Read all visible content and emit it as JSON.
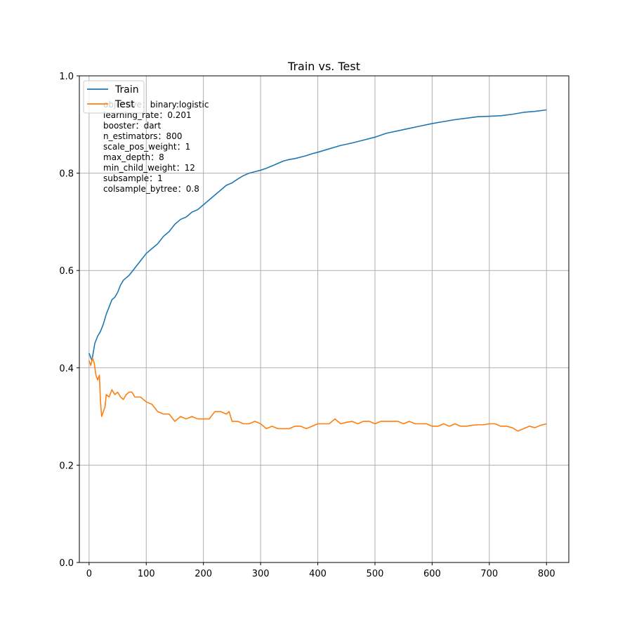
{
  "chart_data": {
    "type": "line",
    "title": "Train vs. Test",
    "xlabel": "",
    "ylabel": "",
    "xlim": [
      -17,
      839
    ],
    "ylim": [
      0.0,
      1.0
    ],
    "xticks": [
      0,
      100,
      200,
      300,
      400,
      500,
      600,
      700,
      800
    ],
    "xtick_labels": [
      "0",
      "100",
      "200",
      "300",
      "400",
      "500",
      "600",
      "700",
      "800"
    ],
    "yticks": [
      0.0,
      0.2,
      0.4,
      0.6,
      0.8,
      1.0
    ],
    "ytick_labels": [
      "0.0",
      "0.2",
      "0.4",
      "0.6",
      "0.8",
      "1.0"
    ],
    "grid": true,
    "legend_position": "top-left",
    "series": [
      {
        "name": "Train",
        "color": "#1f77b4",
        "points": [
          [
            0,
            0.43
          ],
          [
            5,
            0.415
          ],
          [
            10,
            0.45
          ],
          [
            15,
            0.465
          ],
          [
            20,
            0.475
          ],
          [
            25,
            0.49
          ],
          [
            30,
            0.51
          ],
          [
            35,
            0.525
          ],
          [
            40,
            0.54
          ],
          [
            45,
            0.545
          ],
          [
            50,
            0.555
          ],
          [
            55,
            0.57
          ],
          [
            60,
            0.58
          ],
          [
            70,
            0.59
          ],
          [
            80,
            0.605
          ],
          [
            90,
            0.62
          ],
          [
            100,
            0.635
          ],
          [
            110,
            0.645
          ],
          [
            120,
            0.655
          ],
          [
            130,
            0.67
          ],
          [
            140,
            0.68
          ],
          [
            150,
            0.695
          ],
          [
            160,
            0.705
          ],
          [
            170,
            0.71
          ],
          [
            180,
            0.72
          ],
          [
            190,
            0.725
          ],
          [
            200,
            0.735
          ],
          [
            210,
            0.745
          ],
          [
            220,
            0.755
          ],
          [
            230,
            0.765
          ],
          [
            240,
            0.775
          ],
          [
            250,
            0.78
          ],
          [
            260,
            0.788
          ],
          [
            270,
            0.795
          ],
          [
            280,
            0.8
          ],
          [
            290,
            0.803
          ],
          [
            300,
            0.806
          ],
          [
            310,
            0.81
          ],
          [
            320,
            0.815
          ],
          [
            330,
            0.82
          ],
          [
            340,
            0.825
          ],
          [
            350,
            0.828
          ],
          [
            360,
            0.83
          ],
          [
            370,
            0.833
          ],
          [
            380,
            0.836
          ],
          [
            390,
            0.84
          ],
          [
            400,
            0.843
          ],
          [
            420,
            0.85
          ],
          [
            440,
            0.857
          ],
          [
            460,
            0.862
          ],
          [
            480,
            0.868
          ],
          [
            500,
            0.874
          ],
          [
            520,
            0.882
          ],
          [
            540,
            0.887
          ],
          [
            560,
            0.892
          ],
          [
            580,
            0.897
          ],
          [
            600,
            0.902
          ],
          [
            620,
            0.906
          ],
          [
            640,
            0.91
          ],
          [
            660,
            0.913
          ],
          [
            680,
            0.916
          ],
          [
            700,
            0.917
          ],
          [
            720,
            0.918
          ],
          [
            740,
            0.921
          ],
          [
            760,
            0.925
          ],
          [
            780,
            0.927
          ],
          [
            800,
            0.93
          ]
        ]
      },
      {
        "name": "Test",
        "color": "#ff7f0e",
        "points": [
          [
            0,
            0.415
          ],
          [
            3,
            0.405
          ],
          [
            6,
            0.42
          ],
          [
            9,
            0.41
          ],
          [
            12,
            0.385
          ],
          [
            15,
            0.375
          ],
          [
            18,
            0.385
          ],
          [
            20,
            0.33
          ],
          [
            22,
            0.3
          ],
          [
            25,
            0.31
          ],
          [
            28,
            0.32
          ],
          [
            30,
            0.345
          ],
          [
            35,
            0.34
          ],
          [
            40,
            0.355
          ],
          [
            45,
            0.345
          ],
          [
            50,
            0.35
          ],
          [
            55,
            0.34
          ],
          [
            60,
            0.335
          ],
          [
            65,
            0.345
          ],
          [
            70,
            0.35
          ],
          [
            75,
            0.35
          ],
          [
            80,
            0.34
          ],
          [
            90,
            0.34
          ],
          [
            100,
            0.33
          ],
          [
            110,
            0.325
          ],
          [
            120,
            0.31
          ],
          [
            130,
            0.305
          ],
          [
            140,
            0.305
          ],
          [
            150,
            0.29
          ],
          [
            160,
            0.3
          ],
          [
            170,
            0.295
          ],
          [
            180,
            0.3
          ],
          [
            190,
            0.295
          ],
          [
            200,
            0.295
          ],
          [
            210,
            0.295
          ],
          [
            220,
            0.31
          ],
          [
            230,
            0.31
          ],
          [
            240,
            0.305
          ],
          [
            245,
            0.31
          ],
          [
            250,
            0.29
          ],
          [
            260,
            0.29
          ],
          [
            270,
            0.285
          ],
          [
            280,
            0.285
          ],
          [
            290,
            0.29
          ],
          [
            300,
            0.285
          ],
          [
            310,
            0.275
          ],
          [
            320,
            0.28
          ],
          [
            330,
            0.275
          ],
          [
            340,
            0.275
          ],
          [
            350,
            0.275
          ],
          [
            360,
            0.28
          ],
          [
            370,
            0.28
          ],
          [
            380,
            0.275
          ],
          [
            390,
            0.28
          ],
          [
            400,
            0.285
          ],
          [
            410,
            0.285
          ],
          [
            420,
            0.285
          ],
          [
            430,
            0.295
          ],
          [
            440,
            0.285
          ],
          [
            450,
            0.288
          ],
          [
            460,
            0.29
          ],
          [
            470,
            0.285
          ],
          [
            480,
            0.29
          ],
          [
            490,
            0.29
          ],
          [
            500,
            0.285
          ],
          [
            510,
            0.29
          ],
          [
            520,
            0.29
          ],
          [
            530,
            0.29
          ],
          [
            540,
            0.29
          ],
          [
            550,
            0.285
          ],
          [
            560,
            0.29
          ],
          [
            570,
            0.285
          ],
          [
            580,
            0.285
          ],
          [
            590,
            0.285
          ],
          [
            600,
            0.28
          ],
          [
            610,
            0.28
          ],
          [
            620,
            0.285
          ],
          [
            630,
            0.28
          ],
          [
            640,
            0.285
          ],
          [
            650,
            0.28
          ],
          [
            660,
            0.28
          ],
          [
            670,
            0.282
          ],
          [
            680,
            0.283
          ],
          [
            690,
            0.283
          ],
          [
            700,
            0.285
          ],
          [
            710,
            0.285
          ],
          [
            720,
            0.28
          ],
          [
            730,
            0.28
          ],
          [
            740,
            0.277
          ],
          [
            750,
            0.27
          ],
          [
            760,
            0.275
          ],
          [
            770,
            0.28
          ],
          [
            780,
            0.277
          ],
          [
            790,
            0.282
          ],
          [
            800,
            0.285
          ]
        ]
      }
    ],
    "annotations": [
      "objective：binary:logistic",
      "learning_rate：0.201",
      "booster：dart",
      "n_estimators：800",
      "scale_pos_weight：1",
      "max_depth：8",
      "min_child_weight：12",
      "subsample：1",
      "colsample_bytree：0.8"
    ]
  }
}
